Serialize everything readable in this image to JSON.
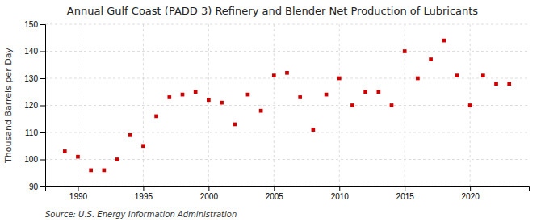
{
  "chart_data": {
    "type": "scatter",
    "title": "Annual Gulf Coast (PADD 3) Refinery and Blender Net Production of Lubricants",
    "ylabel": "Thousand Barrels per Day",
    "annotations": [
      "Source: U.S. Energy Information Administration"
    ],
    "x": [
      1989,
      1990,
      1991,
      1992,
      1993,
      1994,
      1995,
      1996,
      1997,
      1998,
      1999,
      2000,
      2001,
      2002,
      2003,
      2004,
      2005,
      2006,
      2007,
      2008,
      2009,
      2010,
      2011,
      2012,
      2013,
      2014,
      2015,
      2016,
      2017,
      2018,
      2019,
      2020,
      2021,
      2022,
      2023
    ],
    "values": [
      103,
      101,
      96,
      96,
      100,
      109,
      105,
      116,
      123,
      124,
      125,
      122,
      121,
      113,
      124,
      118,
      131,
      132,
      123,
      111,
      124,
      130,
      120,
      125,
      125,
      120,
      140,
      130,
      137,
      144,
      131,
      120,
      131,
      128,
      128
    ],
    "color": "#cc0000",
    "marker": "square",
    "xlim": [
      1987.5,
      2024.5
    ],
    "xticks": [
      1990,
      1995,
      2000,
      2005,
      2010,
      2015,
      2020
    ],
    "ylim": [
      90,
      150
    ],
    "yticks": [
      90,
      100,
      110,
      120,
      130,
      140,
      150
    ],
    "grid": true
  }
}
